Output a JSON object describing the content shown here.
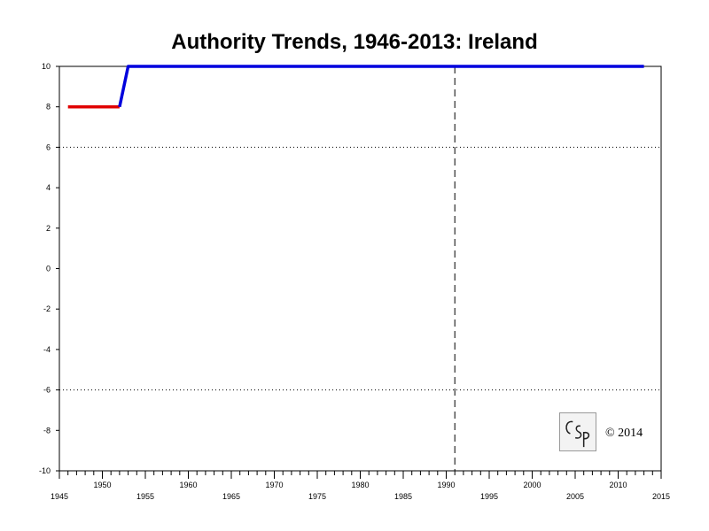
{
  "chart_data": {
    "type": "line",
    "title": "Authority Trends, 1946-2013: Ireland",
    "xlabel": "",
    "ylabel": "",
    "xlim": [
      1945,
      2015
    ],
    "ylim": [
      -10,
      10
    ],
    "y_ticks": [
      10,
      8,
      6,
      4,
      2,
      0,
      -2,
      -4,
      -6,
      -8,
      -10
    ],
    "x_ticks_lower": [
      1945,
      1955,
      1965,
      1975,
      1985,
      1995,
      2005,
      2015
    ],
    "x_ticks_upper": [
      1950,
      1960,
      1970,
      1980,
      1990,
      2000,
      2010
    ],
    "reference_lines_y": [
      6,
      -6
    ],
    "reference_line_x": 1991,
    "grid": false,
    "series": [
      {
        "color": "#e00000",
        "points": [
          [
            1946,
            8
          ],
          [
            1952,
            8
          ]
        ]
      },
      {
        "color": "#0000dd",
        "points": [
          [
            1952,
            8
          ],
          [
            1953,
            10
          ],
          [
            2013,
            10
          ]
        ]
      }
    ]
  },
  "watermark": {
    "copyright": "© 2014",
    "logo_text": "CSP"
  }
}
